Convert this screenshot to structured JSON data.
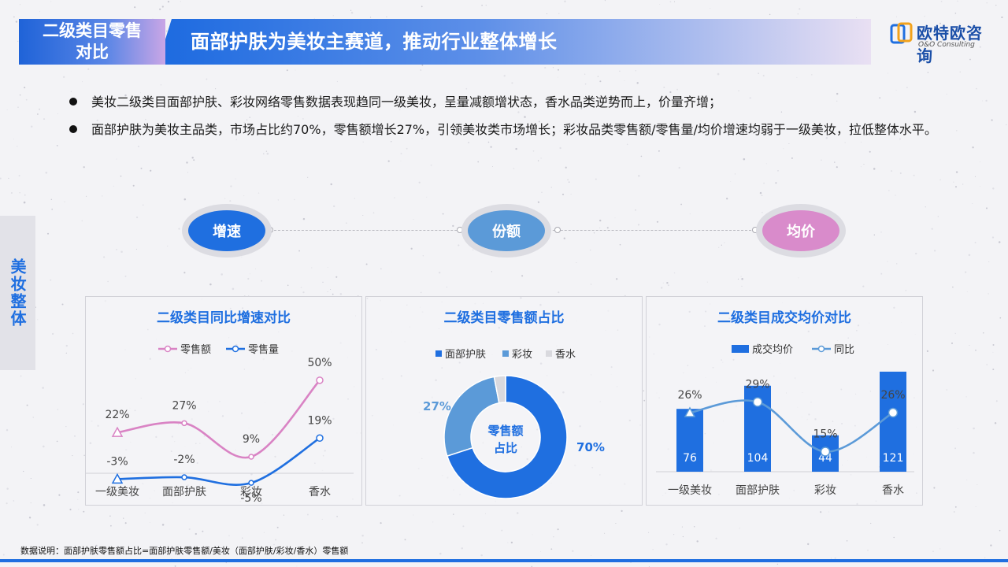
{
  "header": {
    "tag_line1": "二级类目零售",
    "tag_line2": "对比",
    "title": "面部护肤为美妆主赛道，推动行业整体增长"
  },
  "logo": {
    "name_cn": "欧特欧咨询",
    "name_en": "O&O Consulting"
  },
  "bullets": [
    "美妆二级类目面部护肤、彩妆网络零售数据表现趋同一级美妆，呈量减额增状态，香水品类逆势而上，价量齐增；",
    "面部护肤为美妆主品类，市场占比约70%，零售额增长27%，引领美妆类市场增长；彩妆品类零售额/零售量/均价增速均弱于一级美妆，拉低整体水平。"
  ],
  "side_tab": "美妆整体",
  "pills": [
    {
      "label": "增速",
      "color": "#1f6fe0"
    },
    {
      "label": "份额",
      "color": "#5b9ad8"
    },
    {
      "label": "均价",
      "color": "#d98bcb"
    }
  ],
  "footnote": "数据说明：面部护肤零售额占比=面部护肤零售额/美妆（面部护肤/彩妆/香水）零售额",
  "chart_data": [
    {
      "type": "line",
      "title": "二级类目同比增速对比",
      "categories": [
        "一级美妆",
        "面部护肤",
        "彩妆",
        "香水"
      ],
      "series": [
        {
          "name": "零售额",
          "values": [
            22,
            27,
            9,
            50
          ],
          "labels": [
            "22%",
            "27%",
            "9%",
            "50%"
          ],
          "color": "#d983c4"
        },
        {
          "name": "零售量",
          "values": [
            -3,
            -2,
            -5,
            19
          ],
          "labels": [
            "-3%",
            "-2%",
            "-5%",
            "19%"
          ],
          "color": "#1f6fe0"
        }
      ],
      "legend": "top-center",
      "grid": false
    },
    {
      "type": "pie",
      "title": "二级类目零售额占比",
      "center_label_line1": "零售额",
      "center_label_line2": "占比",
      "slices": [
        {
          "name": "面部护肤",
          "value": 70,
          "label": "70%",
          "color": "#1f6fe0"
        },
        {
          "name": "彩妆",
          "value": 27,
          "label": "27%",
          "color": "#5b9ad8"
        },
        {
          "name": "香水",
          "value": 3,
          "label": "",
          "color": "#d9d9de"
        }
      ],
      "legend": "top-center"
    },
    {
      "type": "bar",
      "title": "二级类目成交均价对比",
      "categories": [
        "一级美妆",
        "面部护肤",
        "彩妆",
        "香水"
      ],
      "bar_series": {
        "name": "成交均价",
        "values": [
          76,
          104,
          44,
          121
        ],
        "labels": [
          "76",
          "104",
          "44",
          "121"
        ],
        "color": "#1f6fe0"
      },
      "line_series": {
        "name": "同比",
        "values": [
          26,
          29,
          15,
          26
        ],
        "labels": [
          "26%",
          "29%",
          "15%",
          "26%"
        ],
        "color": "#5b9ad8"
      },
      "legend": "top-center",
      "grid": false
    }
  ]
}
